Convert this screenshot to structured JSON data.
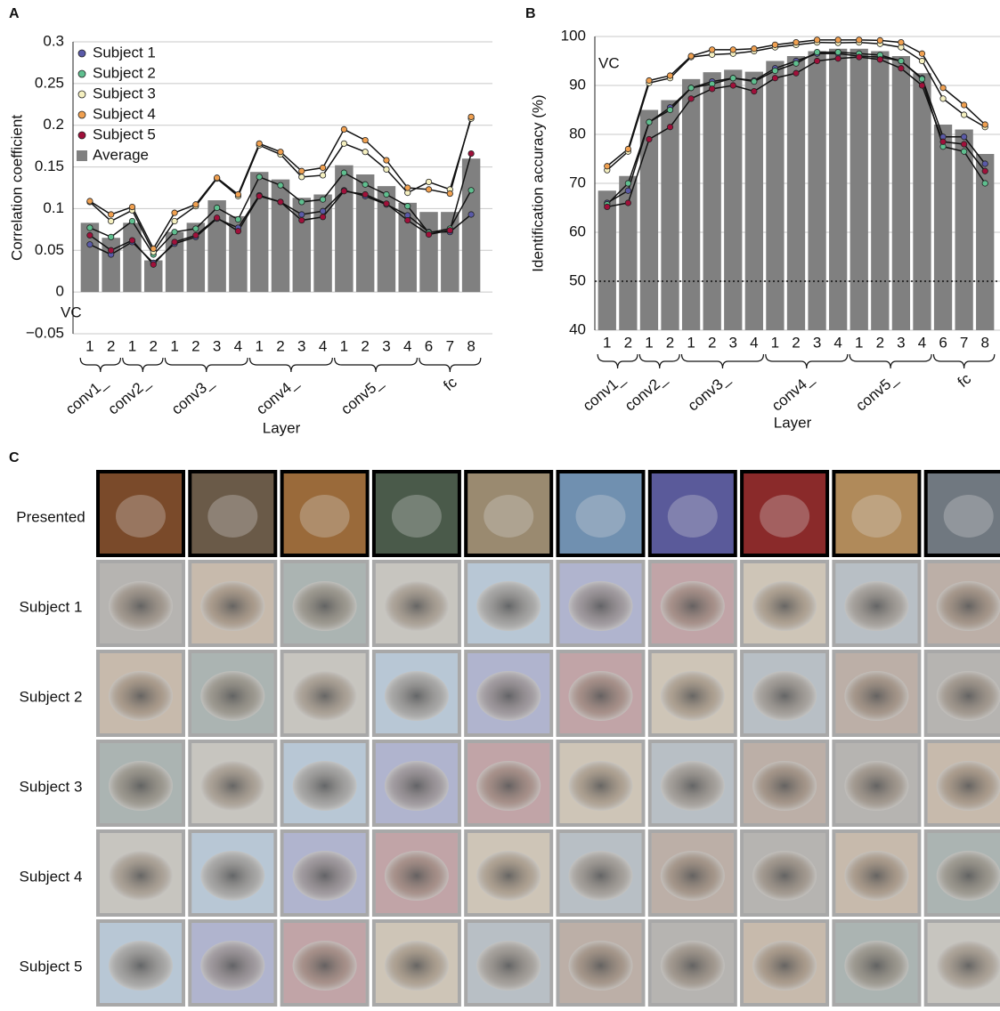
{
  "chart_data": [
    {
      "type": "bar",
      "panel": "A",
      "ylabel": "Correlation coefficient",
      "xlabel": "Layer",
      "annotation": "VC",
      "legend": "top-left",
      "grid": true,
      "groups": [
        {
          "name": "conv1_",
          "categories": [
            "1",
            "2"
          ]
        },
        {
          "name": "conv2_",
          "categories": [
            "1",
            "2"
          ]
        },
        {
          "name": "conv3_",
          "categories": [
            "1",
            "2",
            "3",
            "4"
          ]
        },
        {
          "name": "conv4_",
          "categories": [
            "1",
            "2",
            "3",
            "4"
          ]
        },
        {
          "name": "conv5_",
          "categories": [
            "1",
            "2",
            "3",
            "4"
          ]
        },
        {
          "name": "fc",
          "categories": [
            "6",
            "7",
            "8"
          ]
        }
      ],
      "ylim": [
        -0.05,
        0.3
      ],
      "yticks": [
        {
          "value": -0.05,
          "label": "−0.05"
        },
        0,
        0.05,
        0.1,
        0.15,
        0.2,
        0.25,
        0.3
      ],
      "series": [
        {
          "name": "Subject 1",
          "color": "#5a5aa8",
          "kind": "line",
          "values": [
            0.057,
            0.045,
            0.06,
            0.035,
            0.058,
            0.066,
            0.088,
            0.077,
            0.116,
            0.108,
            0.093,
            0.097,
            0.122,
            0.115,
            0.105,
            0.092,
            0.072,
            0.072,
            0.093
          ]
        },
        {
          "name": "Subject 2",
          "color": "#5fbf8f",
          "kind": "line",
          "values": [
            0.077,
            0.066,
            0.085,
            0.045,
            0.072,
            0.076,
            0.101,
            0.087,
            0.138,
            0.128,
            0.108,
            0.111,
            0.143,
            0.129,
            0.117,
            0.103,
            0.071,
            0.076,
            0.122
          ]
        },
        {
          "name": "Subject 3",
          "color": "#f5f0c0",
          "kind": "line",
          "values": [
            0.108,
            0.085,
            0.098,
            0.048,
            0.085,
            0.103,
            0.136,
            0.115,
            0.176,
            0.165,
            0.138,
            0.14,
            0.178,
            0.168,
            0.147,
            0.119,
            0.132,
            0.123,
            0.208
          ]
        },
        {
          "name": "Subject 4",
          "color": "#f0a050",
          "kind": "line",
          "values": [
            0.109,
            0.093,
            0.102,
            0.052,
            0.095,
            0.105,
            0.137,
            0.117,
            0.178,
            0.168,
            0.145,
            0.149,
            0.195,
            0.182,
            0.158,
            0.125,
            0.123,
            0.118,
            0.21
          ]
        },
        {
          "name": "Subject 5",
          "color": "#a0103a",
          "kind": "line",
          "values": [
            0.068,
            0.05,
            0.062,
            0.033,
            0.06,
            0.068,
            0.089,
            0.073,
            0.115,
            0.108,
            0.086,
            0.09,
            0.121,
            0.117,
            0.106,
            0.086,
            0.069,
            0.074,
            0.166
          ]
        },
        {
          "name": "Average",
          "color": "#808080",
          "kind": "bar",
          "values": [
            0.083,
            0.065,
            0.083,
            0.038,
            0.072,
            0.083,
            0.11,
            0.091,
            0.144,
            0.135,
            0.113,
            0.117,
            0.152,
            0.141,
            0.127,
            0.107,
            0.096,
            0.096,
            0.16
          ]
        }
      ]
    },
    {
      "type": "bar",
      "panel": "B",
      "ylabel": "Identification accuracy (%)",
      "xlabel": "Layer",
      "annotation": "VC",
      "grid": true,
      "reference_line": 50,
      "groups": [
        {
          "name": "conv1_",
          "categories": [
            "1",
            "2"
          ]
        },
        {
          "name": "conv2_",
          "categories": [
            "1",
            "2"
          ]
        },
        {
          "name": "conv3_",
          "categories": [
            "1",
            "2",
            "3",
            "4"
          ]
        },
        {
          "name": "conv4_",
          "categories": [
            "1",
            "2",
            "3",
            "4"
          ]
        },
        {
          "name": "conv5_",
          "categories": [
            "1",
            "2",
            "3",
            "4"
          ]
        },
        {
          "name": "fc",
          "categories": [
            "6",
            "7",
            "8"
          ]
        }
      ],
      "ylim": [
        40,
        100
      ],
      "yticks": [
        40,
        50,
        60,
        70,
        80,
        90,
        100
      ],
      "series": [
        {
          "name": "Subject 1",
          "color": "#5a5aa8",
          "kind": "line",
          "values": [
            66,
            68.5,
            82.5,
            85.5,
            89.5,
            90.8,
            91.5,
            91,
            93.5,
            95,
            96.5,
            96.5,
            96,
            95.8,
            95,
            91.5,
            79.5,
            79.5,
            74
          ]
        },
        {
          "name": "Subject 2",
          "color": "#5fbf8f",
          "kind": "line",
          "values": [
            65.7,
            70,
            82.5,
            85,
            89.5,
            90.3,
            91.5,
            90.8,
            93,
            94.5,
            96.8,
            96.8,
            96.5,
            96.2,
            95,
            91.3,
            77.5,
            76.5,
            70
          ]
        },
        {
          "name": "Subject 3",
          "color": "#f5f0c0",
          "kind": "line",
          "values": [
            72.7,
            76.5,
            90.5,
            91.5,
            95.8,
            96.3,
            96.5,
            97,
            97.8,
            98.3,
            98.8,
            98.7,
            98.8,
            98.5,
            97.8,
            95,
            87.3,
            84,
            81.5
          ]
        },
        {
          "name": "Subject 4",
          "color": "#f0a050",
          "kind": "line",
          "values": [
            73.5,
            77,
            91,
            92,
            96,
            97.3,
            97.3,
            97.5,
            98.3,
            98.8,
            99.3,
            99.3,
            99.3,
            99.2,
            98.8,
            96.5,
            89.5,
            86,
            82
          ]
        },
        {
          "name": "Subject 5",
          "color": "#a0103a",
          "kind": "line",
          "values": [
            65.2,
            66,
            79,
            81.5,
            87.3,
            89.3,
            90,
            88.8,
            91.5,
            92.5,
            95,
            95.5,
            95.8,
            95.3,
            93.5,
            90,
            78.5,
            78,
            72.5
          ]
        },
        {
          "name": "Average",
          "color": "#808080",
          "kind": "bar",
          "values": [
            68.5,
            71.5,
            85,
            87,
            91.3,
            92.7,
            93.2,
            92.8,
            95,
            96,
            97,
            97.5,
            97.5,
            97,
            96,
            92.5,
            82,
            81,
            76
          ]
        }
      ]
    }
  ],
  "panel_c": {
    "label": "C",
    "rows": [
      "Presented",
      "Subject 1",
      "Subject 2",
      "Subject 3",
      "Subject 4",
      "Subject 5"
    ]
  }
}
